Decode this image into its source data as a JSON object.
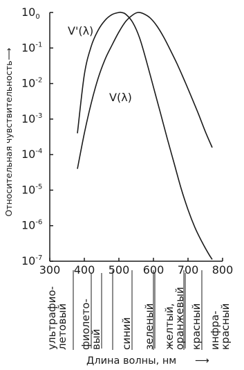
{
  "chart_data": {
    "type": "line",
    "title": "",
    "ylabel": "Относительная чувствительность",
    "xlabel": "Длина волны, нм",
    "xlim": [
      300,
      800
    ],
    "ylim_log10": [
      -7,
      0
    ],
    "yscale": "log",
    "grid": false,
    "x_ticks": [
      "300",
      "400",
      "500",
      "600",
      "700",
      "800"
    ],
    "y_ticks": [
      {
        "base": "10",
        "exp": "0"
      },
      {
        "base": "10",
        "exp": "-1"
      },
      {
        "base": "10",
        "exp": "-2"
      },
      {
        "base": "10",
        "exp": "-3"
      },
      {
        "base": "10",
        "exp": "-4"
      },
      {
        "base": "10",
        "exp": "-5"
      },
      {
        "base": "10",
        "exp": "-6"
      },
      {
        "base": "10",
        "exp": "-7"
      }
    ],
    "series": [
      {
        "name": "V'(λ)",
        "x": [
          380,
          400,
          420,
          440,
          460,
          480,
          500,
          507,
          520,
          540,
          560,
          580,
          600,
          620,
          640,
          660,
          680,
          700,
          720,
          740,
          760,
          770
        ],
        "log10_y": [
          -3.4,
          -1.75,
          -0.95,
          -0.5,
          -0.22,
          -0.06,
          0.0,
          0.0,
          -0.05,
          -0.28,
          -0.72,
          -1.38,
          -2.1,
          -2.82,
          -3.55,
          -4.25,
          -4.95,
          -5.55,
          -6.05,
          -6.45,
          -6.8,
          -6.95
        ]
      },
      {
        "name": "V(λ)",
        "x": [
          380,
          400,
          420,
          440,
          460,
          480,
          500,
          520,
          540,
          555,
          570,
          590,
          610,
          630,
          650,
          670,
          690,
          710,
          730,
          750,
          770
        ],
        "log10_y": [
          -4.4,
          -3.4,
          -2.55,
          -1.85,
          -1.32,
          -0.92,
          -0.55,
          -0.25,
          -0.07,
          0.0,
          -0.03,
          -0.15,
          -0.38,
          -0.7,
          -1.08,
          -1.48,
          -1.92,
          -2.38,
          -2.85,
          -3.35,
          -3.8
        ]
      }
    ],
    "curve_labels": [
      "V'(λ)",
      "V(λ)"
    ]
  },
  "spectrum_bands": [
    [
      "ультрафио-",
      "летовый"
    ],
    [
      "фиолето-",
      "вый"
    ],
    [
      "синий"
    ],
    [
      "зеленый"
    ],
    [
      "желтый,",
      "оранжевый"
    ],
    [
      "красный"
    ],
    [
      "инфра-",
      "красный"
    ]
  ],
  "arrow_glyph": "⟶"
}
